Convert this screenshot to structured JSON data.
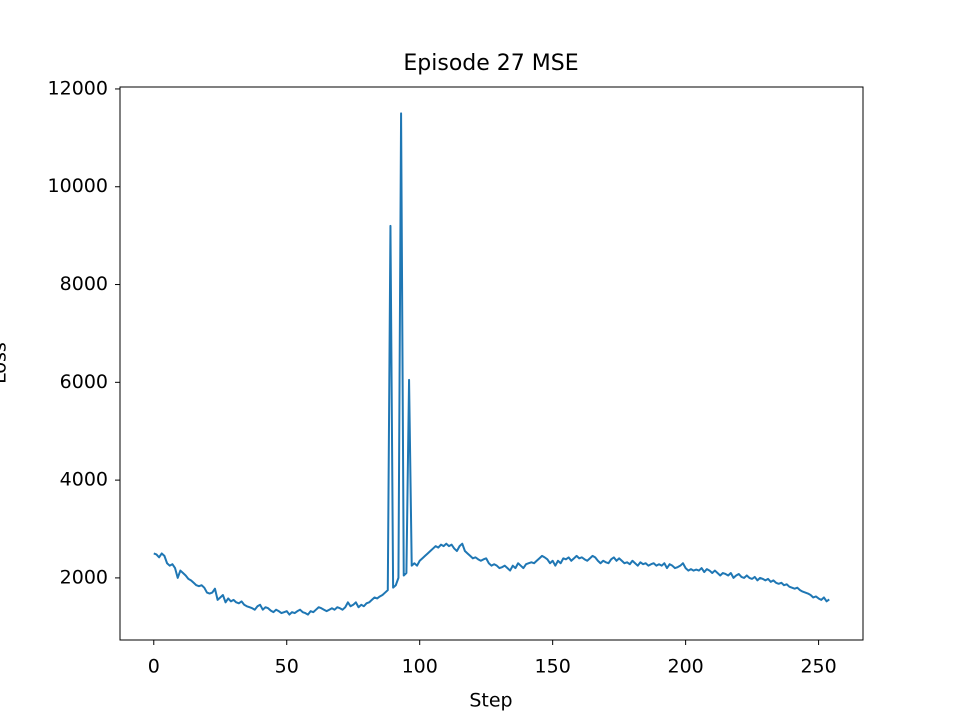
{
  "chart_data": {
    "type": "line",
    "title": "Episode 27 MSE",
    "x_label": "Step",
    "y_label": "Loss",
    "color": "#1f77b4",
    "x": [
      0,
      1,
      2,
      3,
      4,
      5,
      6,
      7,
      8,
      9,
      10,
      11,
      12,
      13,
      14,
      15,
      16,
      17,
      18,
      19,
      20,
      21,
      22,
      23,
      24,
      25,
      26,
      27,
      28,
      29,
      30,
      31,
      32,
      33,
      34,
      35,
      36,
      37,
      38,
      39,
      40,
      41,
      42,
      43,
      44,
      45,
      46,
      47,
      48,
      49,
      50,
      51,
      52,
      53,
      54,
      55,
      56,
      57,
      58,
      59,
      60,
      61,
      62,
      63,
      64,
      65,
      66,
      67,
      68,
      69,
      70,
      71,
      72,
      73,
      74,
      75,
      76,
      77,
      78,
      79,
      80,
      81,
      82,
      83,
      84,
      85,
      86,
      87,
      88,
      89,
      90,
      91,
      92,
      93,
      94,
      95,
      96,
      97,
      98,
      99,
      100,
      101,
      102,
      103,
      104,
      105,
      106,
      107,
      108,
      109,
      110,
      111,
      112,
      113,
      114,
      115,
      116,
      117,
      118,
      119,
      120,
      121,
      122,
      123,
      124,
      125,
      126,
      127,
      128,
      129,
      130,
      131,
      132,
      133,
      134,
      135,
      136,
      137,
      138,
      139,
      140,
      141,
      142,
      143,
      144,
      145,
      146,
      147,
      148,
      149,
      150,
      151,
      152,
      153,
      154,
      155,
      156,
      157,
      158,
      159,
      160,
      161,
      162,
      163,
      164,
      165,
      166,
      167,
      168,
      169,
      170,
      171,
      172,
      173,
      174,
      175,
      176,
      177,
      178,
      179,
      180,
      181,
      182,
      183,
      184,
      185,
      186,
      187,
      188,
      189,
      190,
      191,
      192,
      193,
      194,
      195,
      196,
      197,
      198,
      199,
      200,
      201,
      202,
      203,
      204,
      205,
      206,
      207,
      208,
      209,
      210,
      211,
      212,
      213,
      214,
      215,
      216,
      217,
      218,
      219,
      220,
      221,
      222,
      223,
      224,
      225,
      226,
      227,
      228,
      229,
      230,
      231,
      232,
      233,
      234,
      235,
      236,
      237,
      238,
      239,
      240,
      241,
      242,
      243,
      244,
      245,
      246,
      247,
      248,
      249,
      250,
      251,
      252,
      253,
      254
    ],
    "values": [
      2500,
      2480,
      2420,
      2500,
      2450,
      2300,
      2250,
      2280,
      2200,
      2000,
      2150,
      2100,
      2050,
      1980,
      1950,
      1900,
      1850,
      1830,
      1850,
      1800,
      1700,
      1680,
      1700,
      1780,
      1550,
      1600,
      1650,
      1500,
      1580,
      1520,
      1550,
      1500,
      1480,
      1520,
      1450,
      1420,
      1400,
      1380,
      1350,
      1420,
      1450,
      1350,
      1400,
      1380,
      1330,
      1300,
      1350,
      1320,
      1280,
      1300,
      1320,
      1250,
      1300,
      1280,
      1320,
      1350,
      1300,
      1280,
      1250,
      1320,
      1300,
      1350,
      1400,
      1380,
      1350,
      1320,
      1350,
      1380,
      1350,
      1400,
      1380,
      1350,
      1400,
      1500,
      1420,
      1450,
      1500,
      1400,
      1450,
      1420,
      1480,
      1500,
      1550,
      1600,
      1580,
      1620,
      1650,
      1700,
      1750,
      9200,
      1800,
      1850,
      2000,
      11500,
      2050,
      2100,
      6050,
      2250,
      2300,
      2250,
      2350,
      2400,
      2450,
      2500,
      2550,
      2600,
      2650,
      2620,
      2680,
      2650,
      2700,
      2650,
      2680,
      2600,
      2550,
      2650,
      2700,
      2550,
      2500,
      2450,
      2400,
      2420,
      2380,
      2350,
      2380,
      2400,
      2300,
      2250,
      2280,
      2250,
      2200,
      2220,
      2250,
      2200,
      2150,
      2250,
      2200,
      2300,
      2250,
      2200,
      2280,
      2300,
      2320,
      2300,
      2350,
      2400,
      2450,
      2420,
      2380,
      2300,
      2350,
      2250,
      2350,
      2300,
      2400,
      2380,
      2420,
      2350,
      2400,
      2450,
      2400,
      2420,
      2380,
      2350,
      2400,
      2450,
      2420,
      2350,
      2300,
      2350,
      2320,
      2300,
      2380,
      2420,
      2350,
      2400,
      2350,
      2300,
      2320,
      2280,
      2350,
      2300,
      2250,
      2320,
      2280,
      2300,
      2250,
      2280,
      2300,
      2250,
      2280,
      2250,
      2300,
      2200,
      2280,
      2250,
      2200,
      2220,
      2250,
      2300,
      2200,
      2150,
      2180,
      2150,
      2170,
      2150,
      2200,
      2120,
      2180,
      2150,
      2100,
      2150,
      2100,
      2050,
      2100,
      2080,
      2050,
      2100,
      2000,
      2050,
      2080,
      2020,
      2000,
      2050,
      2000,
      1980,
      2020,
      1950,
      2000,
      1980,
      1950,
      1980,
      1920,
      1950,
      1900,
      1880,
      1900,
      1850,
      1870,
      1820,
      1800,
      1780,
      1800,
      1750,
      1720,
      1700,
      1680,
      1650,
      1600,
      1620,
      1580,
      1550,
      1600,
      1520,
      1560
    ],
    "xlim": [
      -12.7,
      266.7
    ],
    "ylim": [
      730,
      12040
    ],
    "xticks": [
      0,
      50,
      100,
      150,
      200,
      250
    ],
    "yticks": [
      2000,
      4000,
      6000,
      8000,
      10000,
      12000
    ]
  }
}
